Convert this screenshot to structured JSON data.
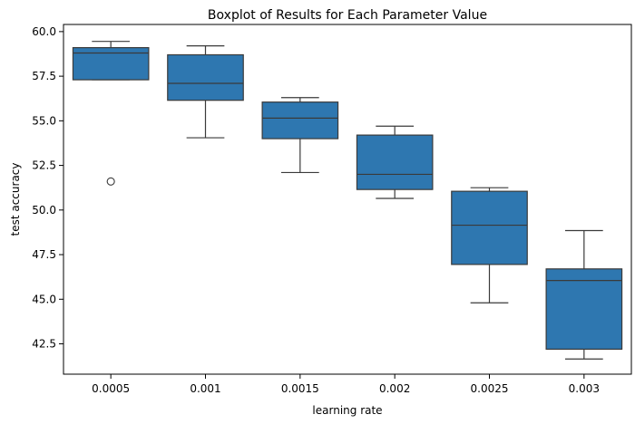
{
  "chart_data": {
    "type": "boxplot",
    "title": "Boxplot of Results for Each Parameter Value",
    "xlabel": "learning rate",
    "ylabel": "test accuracy",
    "categories": [
      "0.0005",
      "0.001",
      "0.0015",
      "0.002",
      "0.0025",
      "0.003"
    ],
    "yticks": [
      "42.5",
      "45.0",
      "47.5",
      "50.0",
      "52.5",
      "55.0",
      "57.5",
      "60.0"
    ],
    "ylim": [
      40.8,
      60.4
    ],
    "grid": false,
    "box_color": "#2e77b0",
    "line_color": "#3a3a3a",
    "boxes": [
      {
        "category": "0.0005",
        "whisker_low": 57.3,
        "q1": 57.3,
        "median": 58.8,
        "q3": 59.1,
        "whisker_high": 59.45,
        "outliers": [
          51.6
        ]
      },
      {
        "category": "0.001",
        "whisker_low": 54.05,
        "q1": 56.15,
        "median": 57.1,
        "q3": 58.7,
        "whisker_high": 59.2,
        "outliers": []
      },
      {
        "category": "0.0015",
        "whisker_low": 52.1,
        "q1": 54.0,
        "median": 55.15,
        "q3": 56.05,
        "whisker_high": 56.3,
        "outliers": []
      },
      {
        "category": "0.002",
        "whisker_low": 50.65,
        "q1": 51.15,
        "median": 52.0,
        "q3": 54.2,
        "whisker_high": 54.7,
        "outliers": []
      },
      {
        "category": "0.0025",
        "whisker_low": 44.8,
        "q1": 46.95,
        "median": 49.15,
        "q3": 51.05,
        "whisker_high": 51.25,
        "outliers": []
      },
      {
        "category": "0.003",
        "whisker_low": 41.65,
        "q1": 42.2,
        "median": 46.05,
        "q3": 46.7,
        "whisker_high": 48.85,
        "outliers": []
      }
    ]
  }
}
